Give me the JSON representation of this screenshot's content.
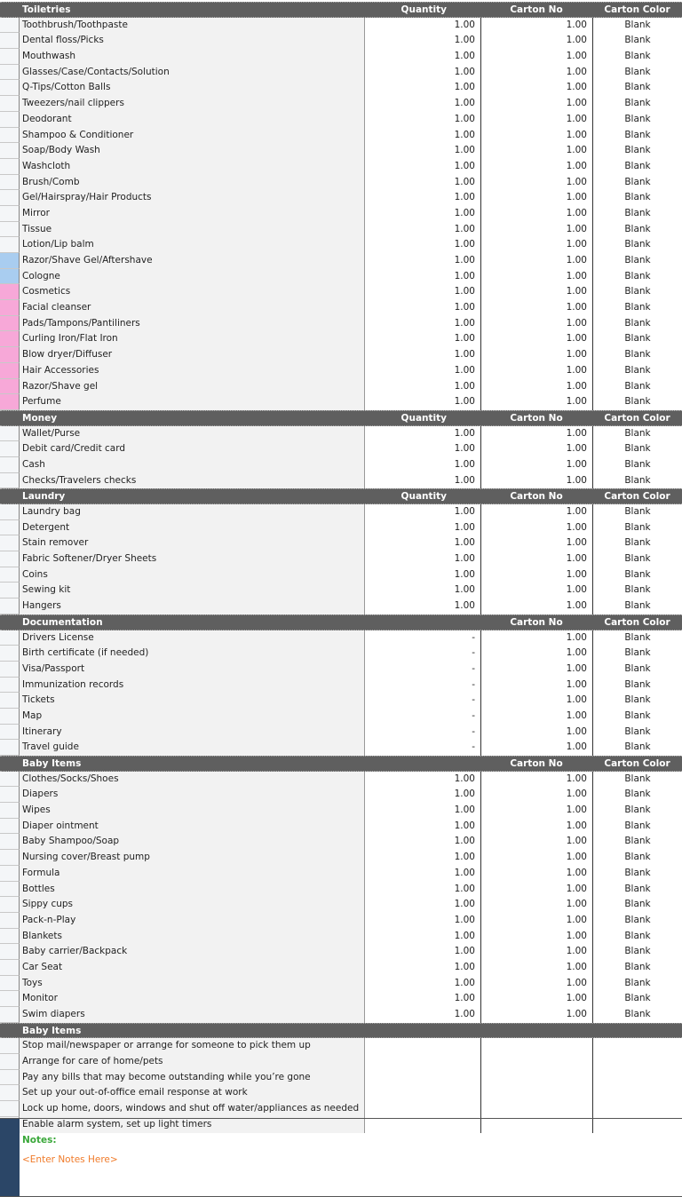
{
  "colors": {
    "header_bg": "#5f5f5f",
    "men_marker": "#a9cdf0",
    "women_marker": "#f7a8d8",
    "notes_side": "#2b4667",
    "notes_label": "#3aa83a",
    "notes_placeholder": "#f07b2a"
  },
  "sections": [
    {
      "title": "Toiletries",
      "quantity_label": "Quantity",
      "carton_label": "Carton No",
      "color_label": "Carton Color",
      "items": [
        {
          "name": "Toothbrush/Toothpaste",
          "qty": "1.00",
          "carton": "1.00",
          "color": "Blank"
        },
        {
          "name": "Dental floss/Picks",
          "qty": "1.00",
          "carton": "1.00",
          "color": "Blank"
        },
        {
          "name": "Mouthwash",
          "qty": "1.00",
          "carton": "1.00",
          "color": "Blank"
        },
        {
          "name": "Glasses/Case/Contacts/Solution",
          "qty": "1.00",
          "carton": "1.00",
          "color": "Blank"
        },
        {
          "name": "Q-Tips/Cotton Balls",
          "qty": "1.00",
          "carton": "1.00",
          "color": "Blank"
        },
        {
          "name": "Tweezers/nail clippers",
          "qty": "1.00",
          "carton": "1.00",
          "color": "Blank"
        },
        {
          "name": "Deodorant",
          "qty": "1.00",
          "carton": "1.00",
          "color": "Blank"
        },
        {
          "name": "Shampoo & Conditioner",
          "qty": "1.00",
          "carton": "1.00",
          "color": "Blank"
        },
        {
          "name": "Soap/Body Wash",
          "qty": "1.00",
          "carton": "1.00",
          "color": "Blank"
        },
        {
          "name": "Washcloth",
          "qty": "1.00",
          "carton": "1.00",
          "color": "Blank"
        },
        {
          "name": "Brush/Comb",
          "qty": "1.00",
          "carton": "1.00",
          "color": "Blank"
        },
        {
          "name": "Gel/Hairspray/Hair Products",
          "qty": "1.00",
          "carton": "1.00",
          "color": "Blank"
        },
        {
          "name": "Mirror",
          "qty": "1.00",
          "carton": "1.00",
          "color": "Blank"
        },
        {
          "name": "Tissue",
          "qty": "1.00",
          "carton": "1.00",
          "color": "Blank"
        },
        {
          "name": "Lotion/Lip balm",
          "qty": "1.00",
          "carton": "1.00",
          "color": "Blank"
        },
        {
          "name": "Razor/Shave Gel/Aftershave",
          "qty": "1.00",
          "carton": "1.00",
          "color": "Blank",
          "marker": "men"
        },
        {
          "name": "Cologne",
          "qty": "1.00",
          "carton": "1.00",
          "color": "Blank",
          "marker": "men"
        },
        {
          "name": "Cosmetics",
          "qty": "1.00",
          "carton": "1.00",
          "color": "Blank",
          "marker": "women"
        },
        {
          "name": "Facial cleanser",
          "qty": "1.00",
          "carton": "1.00",
          "color": "Blank",
          "marker": "women"
        },
        {
          "name": "Pads/Tampons/Pantiliners",
          "qty": "1.00",
          "carton": "1.00",
          "color": "Blank",
          "marker": "women"
        },
        {
          "name": "Curling Iron/Flat Iron",
          "qty": "1.00",
          "carton": "1.00",
          "color": "Blank",
          "marker": "women"
        },
        {
          "name": "Blow dryer/Diffuser",
          "qty": "1.00",
          "carton": "1.00",
          "color": "Blank",
          "marker": "women"
        },
        {
          "name": "Hair Accessories",
          "qty": "1.00",
          "carton": "1.00",
          "color": "Blank",
          "marker": "women"
        },
        {
          "name": "Razor/Shave gel",
          "qty": "1.00",
          "carton": "1.00",
          "color": "Blank",
          "marker": "women"
        },
        {
          "name": "Perfume",
          "qty": "1.00",
          "carton": "1.00",
          "color": "Blank",
          "marker": "women"
        }
      ]
    },
    {
      "title": "Money",
      "quantity_label": "Quantity",
      "carton_label": "Carton No",
      "color_label": "Carton Color",
      "items": [
        {
          "name": "Wallet/Purse",
          "qty": "1.00",
          "carton": "1.00",
          "color": "Blank"
        },
        {
          "name": "Debit card/Credit card",
          "qty": "1.00",
          "carton": "1.00",
          "color": "Blank"
        },
        {
          "name": "Cash",
          "qty": "1.00",
          "carton": "1.00",
          "color": "Blank"
        },
        {
          "name": "Checks/Travelers checks",
          "qty": "1.00",
          "carton": "1.00",
          "color": "Blank"
        }
      ]
    },
    {
      "title": "Laundry",
      "quantity_label": "Quantity",
      "carton_label": "Carton No",
      "color_label": "Carton Color",
      "items": [
        {
          "name": "Laundry bag",
          "qty": "1.00",
          "carton": "1.00",
          "color": "Blank"
        },
        {
          "name": "Detergent",
          "qty": "1.00",
          "carton": "1.00",
          "color": "Blank"
        },
        {
          "name": "Stain remover",
          "qty": "1.00",
          "carton": "1.00",
          "color": "Blank"
        },
        {
          "name": "Fabric Softener/Dryer Sheets",
          "qty": "1.00",
          "carton": "1.00",
          "color": "Blank"
        },
        {
          "name": "Coins",
          "qty": "1.00",
          "carton": "1.00",
          "color": "Blank"
        },
        {
          "name": "Sewing kit",
          "qty": "1.00",
          "carton": "1.00",
          "color": "Blank"
        },
        {
          "name": "Hangers",
          "qty": "1.00",
          "carton": "1.00",
          "color": "Blank"
        }
      ]
    },
    {
      "title": "Documentation",
      "quantity_label": "",
      "carton_label": "Carton No",
      "color_label": "Carton Color",
      "items": [
        {
          "name": "Drivers License",
          "qty": "-",
          "carton": "1.00",
          "color": "Blank"
        },
        {
          "name": "Birth certificate (if needed)",
          "qty": "-",
          "carton": "1.00",
          "color": "Blank"
        },
        {
          "name": "Visa/Passport",
          "qty": "-",
          "carton": "1.00",
          "color": "Blank"
        },
        {
          "name": "Immunization records",
          "qty": "-",
          "carton": "1.00",
          "color": "Blank"
        },
        {
          "name": "Tickets",
          "qty": "-",
          "carton": "1.00",
          "color": "Blank"
        },
        {
          "name": "Map",
          "qty": "-",
          "carton": "1.00",
          "color": "Blank"
        },
        {
          "name": "Itinerary",
          "qty": "-",
          "carton": "1.00",
          "color": "Blank"
        },
        {
          "name": "Travel guide",
          "qty": "-",
          "carton": "1.00",
          "color": "Blank"
        }
      ]
    },
    {
      "title": "Baby Items",
      "quantity_label": "",
      "carton_label": "Carton No",
      "color_label": "Carton Color",
      "items": [
        {
          "name": "Clothes/Socks/Shoes",
          "qty": "1.00",
          "carton": "1.00",
          "color": "Blank"
        },
        {
          "name": "Diapers",
          "qty": "1.00",
          "carton": "1.00",
          "color": "Blank"
        },
        {
          "name": "Wipes",
          "qty": "1.00",
          "carton": "1.00",
          "color": "Blank"
        },
        {
          "name": "Diaper ointment",
          "qty": "1.00",
          "carton": "1.00",
          "color": "Blank"
        },
        {
          "name": "Baby Shampoo/Soap",
          "qty": "1.00",
          "carton": "1.00",
          "color": "Blank"
        },
        {
          "name": "Nursing cover/Breast pump",
          "qty": "1.00",
          "carton": "1.00",
          "color": "Blank"
        },
        {
          "name": "Formula",
          "qty": "1.00",
          "carton": "1.00",
          "color": "Blank"
        },
        {
          "name": "Bottles",
          "qty": "1.00",
          "carton": "1.00",
          "color": "Blank"
        },
        {
          "name": "Sippy cups",
          "qty": "1.00",
          "carton": "1.00",
          "color": "Blank"
        },
        {
          "name": "Pack-n-Play",
          "qty": "1.00",
          "carton": "1.00",
          "color": "Blank"
        },
        {
          "name": "Blankets",
          "qty": "1.00",
          "carton": "1.00",
          "color": "Blank"
        },
        {
          "name": "Baby carrier/Backpack",
          "qty": "1.00",
          "carton": "1.00",
          "color": "Blank"
        },
        {
          "name": "Car Seat",
          "qty": "1.00",
          "carton": "1.00",
          "color": "Blank"
        },
        {
          "name": "Toys",
          "qty": "1.00",
          "carton": "1.00",
          "color": "Blank"
        },
        {
          "name": "Monitor",
          "qty": "1.00",
          "carton": "1.00",
          "color": "Blank"
        },
        {
          "name": "Swim diapers",
          "qty": "1.00",
          "carton": "1.00",
          "color": "Blank"
        }
      ]
    },
    {
      "title": "Baby Items",
      "quantity_label": "",
      "carton_label": "",
      "color_label": "",
      "items": [
        {
          "name": "Stop mail/newspaper or arrange for someone to pick them up",
          "qty": "",
          "carton": "",
          "color": ""
        },
        {
          "name": "Arrange for care of home/pets",
          "qty": "",
          "carton": "",
          "color": ""
        },
        {
          "name": "Pay any bills that may become outstanding while you’re gone",
          "qty": "",
          "carton": "",
          "color": ""
        },
        {
          "name": "Set up your out-of-office email response at work",
          "qty": "",
          "carton": "",
          "color": ""
        },
        {
          "name": "Lock up home, doors, windows and shut off water/appliances as needed",
          "qty": "",
          "carton": "",
          "color": ""
        },
        {
          "name": "Enable alarm system, set up light timers",
          "qty": "",
          "carton": "",
          "color": ""
        }
      ]
    }
  ],
  "notes": {
    "label": "Notes:",
    "placeholder": "<Enter Notes Here>"
  }
}
